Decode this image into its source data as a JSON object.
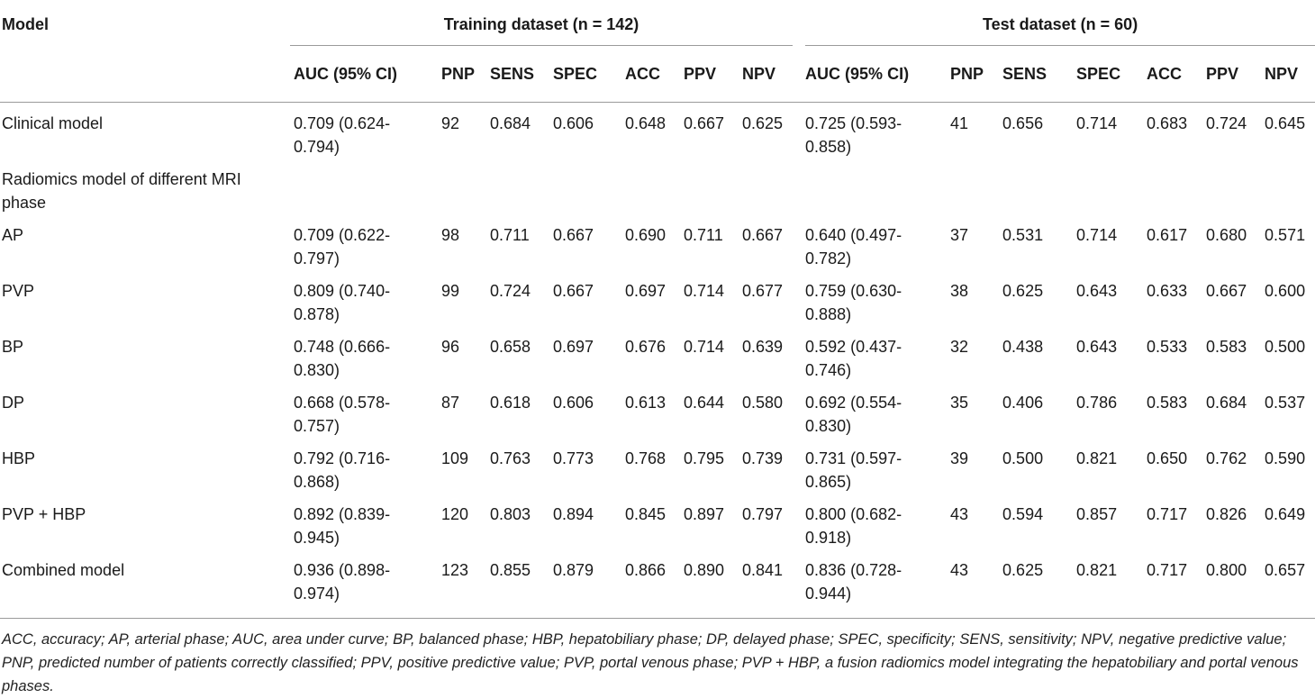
{
  "header": {
    "model": "Model",
    "training_group": "Training dataset (n = 142)",
    "test_group": "Test dataset (n = 60)",
    "columns": [
      "AUC (95% CI)",
      "PNP",
      "SENS",
      "SPEC",
      "ACC",
      "PPV",
      "NPV"
    ]
  },
  "rows": [
    {
      "model": "Clinical model",
      "train": [
        "0.709 (0.624-\n0.794)",
        "92",
        "0.684",
        "0.606",
        "0.648",
        "0.667",
        "0.625"
      ],
      "test": [
        "0.725 (0.593-\n0.858)",
        "41",
        "0.656",
        "0.714",
        "0.683",
        "0.724",
        "0.645"
      ]
    },
    {
      "model": "Radiomics model of different MRI\nphase",
      "train": [
        "",
        "",
        "",
        "",
        "",
        "",
        ""
      ],
      "test": [
        "",
        "",
        "",
        "",
        "",
        "",
        ""
      ]
    },
    {
      "model": "AP",
      "train": [
        "0.709 (0.622-\n0.797)",
        "98",
        "0.711",
        "0.667",
        "0.690",
        "0.711",
        "0.667"
      ],
      "test": [
        "0.640 (0.497-\n0.782)",
        "37",
        "0.531",
        "0.714",
        "0.617",
        "0.680",
        "0.571"
      ]
    },
    {
      "model": "PVP",
      "train": [
        "0.809 (0.740-\n0.878)",
        "99",
        "0.724",
        "0.667",
        "0.697",
        "0.714",
        "0.677"
      ],
      "test": [
        "0.759 (0.630-\n0.888)",
        "38",
        "0.625",
        "0.643",
        "0.633",
        "0.667",
        "0.600"
      ]
    },
    {
      "model": "BP",
      "train": [
        "0.748 (0.666-\n0.830)",
        "96",
        "0.658",
        "0.697",
        "0.676",
        "0.714",
        "0.639"
      ],
      "test": [
        "0.592 (0.437-\n0.746)",
        "32",
        "0.438",
        "0.643",
        "0.533",
        "0.583",
        "0.500"
      ]
    },
    {
      "model": "DP",
      "train": [
        "0.668 (0.578-\n0.757)",
        "87",
        "0.618",
        "0.606",
        "0.613",
        "0.644",
        "0.580"
      ],
      "test": [
        "0.692 (0.554-\n0.830)",
        "35",
        "0.406",
        "0.786",
        "0.583",
        "0.684",
        "0.537"
      ]
    },
    {
      "model": "HBP",
      "train": [
        "0.792 (0.716-\n0.868)",
        "109",
        "0.763",
        "0.773",
        "0.768",
        "0.795",
        "0.739"
      ],
      "test": [
        "0.731 (0.597-\n0.865)",
        "39",
        "0.500",
        "0.821",
        "0.650",
        "0.762",
        "0.590"
      ]
    },
    {
      "model": "PVP + HBP",
      "train": [
        "0.892 (0.839-\n0.945)",
        "120",
        "0.803",
        "0.894",
        "0.845",
        "0.897",
        "0.797"
      ],
      "test": [
        "0.800 (0.682-\n0.918)",
        "43",
        "0.594",
        "0.857",
        "0.717",
        "0.826",
        "0.649"
      ]
    },
    {
      "model": "Combined model",
      "train": [
        "0.936 (0.898-\n0.974)",
        "123",
        "0.855",
        "0.879",
        "0.866",
        "0.890",
        "0.841"
      ],
      "test": [
        "0.836 (0.728-\n0.944)",
        "43",
        "0.625",
        "0.821",
        "0.717",
        "0.800",
        "0.657"
      ]
    }
  ],
  "footnote": "ACC, accuracy; AP, arterial phase; AUC, area under curve; BP, balanced phase; HBP, hepatobiliary phase; DP, delayed phase; SPEC, specificity; SENS, sensitivity; NPV, negative predictive value; PNP, predicted number of patients correctly classified; PPV, positive predictive value; PVP, portal venous phase; PVP + HBP, a fusion radiomics model integrating the hepatobiliary and portal venous phases."
}
